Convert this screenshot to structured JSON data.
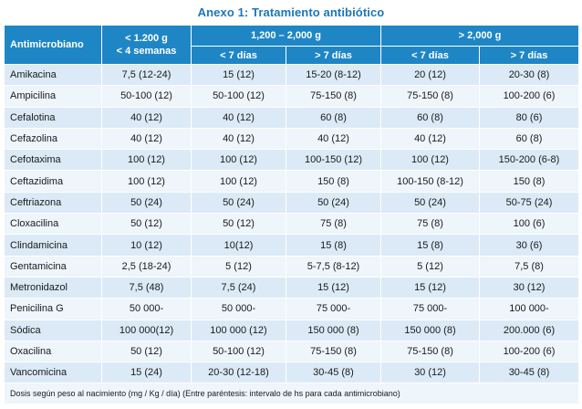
{
  "title": "Anexo 1: Tratamiento antibiótico",
  "header": {
    "col0": "Antimicrobiano",
    "group1_line1": "< 1.200 g",
    "group1_line2": "< 4 semanas",
    "group2": "1,200 – 2,000 g",
    "group3": "> 2,000 g",
    "sub_lt7": "< 7 días",
    "sub_gt7": "> 7 días"
  },
  "rows": [
    [
      "Amikacina",
      "7,5 (12-24)",
      "15 (12)",
      "15-20 (8-12)",
      "20 (12)",
      "20-30 (8)"
    ],
    [
      "Ampicilina",
      "50-100 (12)",
      "50-100 (12)",
      "75-150 (8)",
      "75-150 (8)",
      "100-200 (6)"
    ],
    [
      "Cefalotina",
      "40 (12)",
      "40 (12)",
      "60 (8)",
      "60 (8)",
      "80 (6)"
    ],
    [
      "Cefazolina",
      "40 (12)",
      "40 (12)",
      "40 (12)",
      "40 (12)",
      "60 (8)"
    ],
    [
      "Cefotaxima",
      "100 (12)",
      "100 (12)",
      "100-150 (12)",
      "100 (12)",
      "150-200 (6-8)"
    ],
    [
      "Ceftazidima",
      "100 (12)",
      "100 (12)",
      "150 (8)",
      "100-150 (8-12)",
      "150 (8)"
    ],
    [
      "Ceftriazona",
      "50 (24)",
      "50 (24)",
      "50 (24)",
      "50 (24)",
      "50-75 (24)"
    ],
    [
      "Cloxacilina",
      "50 (12)",
      "50 (12)",
      "75 (8)",
      "75 (8)",
      "100 (6)"
    ],
    [
      "Clindamicina",
      "10 (12)",
      "10(12)",
      "15 (8)",
      "15 (8)",
      "30 (6)"
    ],
    [
      "Gentamicina",
      "2,5 (18-24)",
      "5 (12)",
      "5-7,5 (8-12)",
      "5 (12)",
      "7,5 (8)"
    ],
    [
      "Metronidazol",
      "7,5 (48)",
      "7,5 (24)",
      "15 (12)",
      "15 (12)",
      "30 (12)"
    ],
    [
      "Penicilina G",
      "50 000-",
      "50 000-",
      "75 000-",
      "75 000-",
      "100 000-"
    ],
    [
      "Sódica",
      "100 000(12)",
      "100 000 (12)",
      "150 000 (8)",
      "150 000 (8)",
      "200.000 (6)"
    ],
    [
      "Oxacilina",
      "50 (12)",
      "50-100 (12)",
      "75-150 (8)",
      "75-150 (8)",
      "100-200 (6)"
    ],
    [
      "Vancomicina",
      "15 (24)",
      "20-30 (12-18)",
      "30-45 (8)",
      "30 (12)",
      "30-45 (8)"
    ]
  ],
  "footnote": "Dosis según peso al nacimiento (mg / Kg / día) (Entre paréntesis: intervalo de hs para cada antimicrobiano)"
}
